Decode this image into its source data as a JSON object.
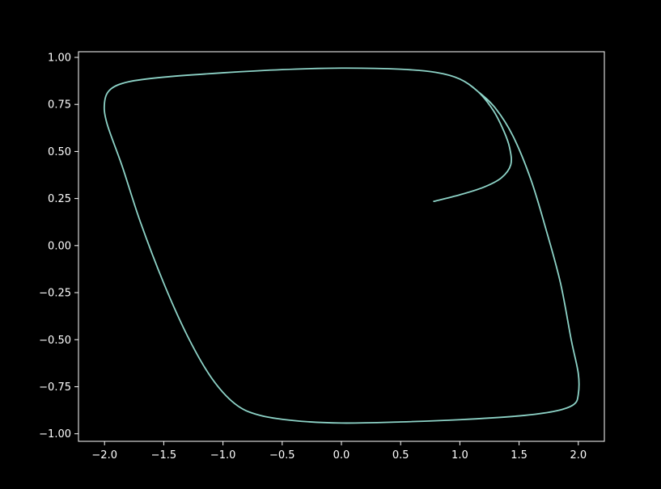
{
  "chart_data": {
    "type": "line",
    "title": "",
    "xlabel": "",
    "ylabel": "",
    "xlim": [
      -2.22,
      2.22
    ],
    "ylim": [
      -1.04,
      1.03
    ],
    "grid": false,
    "x_ticks": [
      -2.0,
      -1.5,
      -1.0,
      -0.5,
      0.0,
      0.5,
      1.0,
      1.5,
      2.0
    ],
    "x_tick_labels": [
      "−2.0",
      "−1.5",
      "−1.0",
      "−0.5",
      "0.0",
      "0.5",
      "1.0",
      "1.5",
      "2.0"
    ],
    "y_ticks": [
      -1.0,
      -0.75,
      -0.5,
      -0.25,
      0.0,
      0.25,
      0.5,
      0.75,
      1.0
    ],
    "y_tick_labels": [
      "−1.00",
      "−0.75",
      "−0.50",
      "−0.25",
      "0.00",
      "0.25",
      "0.50",
      "0.75",
      "1.00"
    ],
    "colors": {
      "background": "#000000",
      "axes": "#ffffff",
      "series": "#8dd3c7"
    },
    "series": [
      {
        "points": [
          [
            0.78,
            0.235
          ],
          [
            1.0,
            0.27
          ],
          [
            1.2,
            0.31
          ],
          [
            1.35,
            0.36
          ],
          [
            1.43,
            0.43
          ],
          [
            1.42,
            0.52
          ],
          [
            1.37,
            0.61
          ],
          [
            1.28,
            0.72
          ],
          [
            1.15,
            0.82
          ],
          [
            1.0,
            0.885
          ],
          [
            0.8,
            0.92
          ],
          [
            0.5,
            0.937
          ],
          [
            0.0,
            0.943
          ],
          [
            -0.5,
            0.935
          ],
          [
            -1.0,
            0.918
          ],
          [
            -1.5,
            0.895
          ],
          [
            -1.8,
            0.87
          ],
          [
            -1.95,
            0.83
          ],
          [
            -2.0,
            0.76
          ],
          [
            -1.98,
            0.65
          ],
          [
            -1.85,
            0.42
          ],
          [
            -1.7,
            0.13
          ],
          [
            -1.5,
            -0.2
          ],
          [
            -1.3,
            -0.48
          ],
          [
            -1.1,
            -0.7
          ],
          [
            -0.9,
            -0.84
          ],
          [
            -0.7,
            -0.9
          ],
          [
            -0.4,
            -0.93
          ],
          [
            0.0,
            -0.943
          ],
          [
            0.5,
            -0.937
          ],
          [
            1.0,
            -0.925
          ],
          [
            1.5,
            -0.905
          ],
          [
            1.8,
            -0.88
          ],
          [
            1.96,
            -0.845
          ],
          [
            2.0,
            -0.79
          ],
          [
            2.0,
            -0.68
          ],
          [
            1.94,
            -0.5
          ],
          [
            1.85,
            -0.2
          ],
          [
            1.73,
            0.08
          ],
          [
            1.6,
            0.35
          ],
          [
            1.45,
            0.58
          ],
          [
            1.3,
            0.73
          ],
          [
            1.15,
            0.82
          ],
          [
            1.0,
            0.885
          ],
          [
            0.8,
            0.92
          ],
          [
            0.5,
            0.937
          ],
          [
            0.0,
            0.943
          ],
          [
            -0.5,
            0.935
          ],
          [
            -1.0,
            0.918
          ],
          [
            -1.5,
            0.895
          ],
          [
            -1.8,
            0.87
          ],
          [
            -1.95,
            0.83
          ],
          [
            -2.0,
            0.76
          ],
          [
            -1.98,
            0.65
          ],
          [
            -1.85,
            0.42
          ],
          [
            -1.7,
            0.13
          ],
          [
            -1.5,
            -0.2
          ],
          [
            -1.3,
            -0.48
          ],
          [
            -1.1,
            -0.7
          ],
          [
            -0.9,
            -0.84
          ],
          [
            -0.7,
            -0.9
          ],
          [
            -0.4,
            -0.93
          ],
          [
            0.0,
            -0.943
          ],
          [
            0.5,
            -0.937
          ],
          [
            1.0,
            -0.925
          ],
          [
            1.5,
            -0.905
          ],
          [
            1.8,
            -0.88
          ],
          [
            1.96,
            -0.845
          ],
          [
            2.0,
            -0.79
          ],
          [
            2.0,
            -0.68
          ],
          [
            1.94,
            -0.5
          ],
          [
            1.85,
            -0.2
          ],
          [
            1.73,
            0.08
          ],
          [
            1.6,
            0.35
          ],
          [
            1.45,
            0.58
          ],
          [
            1.3,
            0.73
          ],
          [
            1.15,
            0.82
          ]
        ]
      }
    ]
  }
}
